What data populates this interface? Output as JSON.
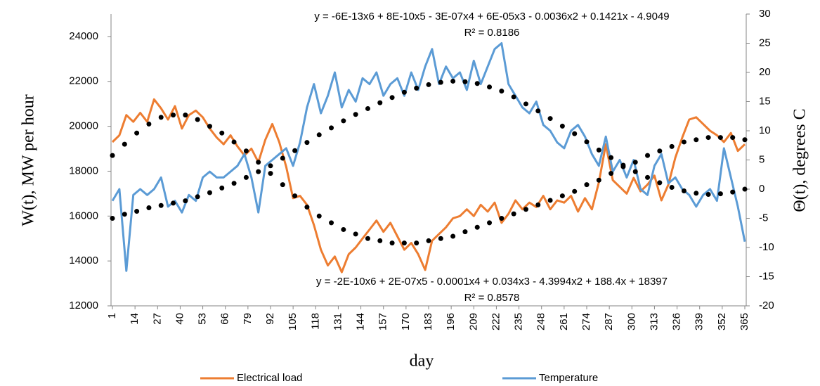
{
  "chart_data": {
    "type": "line",
    "x_label": "day",
    "y_label": "W(t), MW per hour",
    "y2_label": "Θ(t), degrees C",
    "xlim": [
      1,
      365
    ],
    "xticks": [
      1,
      14,
      27,
      40,
      53,
      66,
      79,
      92,
      105,
      118,
      131,
      144,
      157,
      170,
      183,
      196,
      209,
      222,
      235,
      248,
      261,
      274,
      287,
      300,
      313,
      326,
      339,
      352,
      365
    ],
    "ylim": [
      12000,
      25000
    ],
    "yticks": [
      12000,
      14000,
      16000,
      18000,
      20000,
      22000,
      24000
    ],
    "y2lim": [
      -20,
      30
    ],
    "y2ticks": [
      -20,
      -15,
      -10,
      -5,
      0,
      5,
      10,
      15,
      20,
      25,
      30
    ],
    "annotations": [
      "y = -6E-13x6 + 8E-10x5 - 3E-07x4 + 6E-05x3 - 0.0036x2 + 0.1421x - 4.9049",
      "R² = 0.8186",
      "y = -2E-10x6 + 2E-07x5 - 0.0001x4 + 0.034x3 - 4.3994x2 + 188.4x + 18397",
      "R² = 0.8578"
    ],
    "series": [
      {
        "name": "Electrical load",
        "color": "#ed7d31",
        "style": "line",
        "x": [
          1,
          5,
          9,
          13,
          17,
          21,
          25,
          29,
          33,
          37,
          41,
          45,
          49,
          53,
          57,
          61,
          65,
          69,
          73,
          77,
          81,
          85,
          89,
          93,
          97,
          101,
          105,
          109,
          113,
          117,
          121,
          125,
          129,
          133,
          137,
          141,
          145,
          149,
          153,
          157,
          161,
          165,
          169,
          173,
          177,
          181,
          185,
          189,
          193,
          197,
          201,
          205,
          209,
          213,
          217,
          221,
          225,
          229,
          233,
          237,
          241,
          245,
          249,
          253,
          257,
          261,
          265,
          269,
          273,
          277,
          281,
          285,
          289,
          293,
          297,
          301,
          305,
          309,
          313,
          317,
          321,
          325,
          329,
          333,
          337,
          341,
          345,
          349,
          353,
          357,
          361,
          365
        ],
        "values": [
          19300,
          19600,
          20500,
          20200,
          20600,
          20200,
          21200,
          20800,
          20300,
          20900,
          19900,
          20500,
          20700,
          20400,
          19900,
          19500,
          19200,
          19600,
          19100,
          18700,
          19000,
          18400,
          19400,
          20100,
          19300,
          18200,
          16800,
          16900,
          16500,
          15600,
          14500,
          13800,
          14200,
          13500,
          14300,
          14600,
          15000,
          15400,
          15800,
          15300,
          15700,
          15100,
          14500,
          14800,
          14300,
          13600,
          14900,
          15200,
          15500,
          15900,
          16000,
          16300,
          16000,
          16500,
          16200,
          16600,
          15700,
          16100,
          16700,
          16300,
          16600,
          16400,
          16900,
          16300,
          16700,
          16600,
          16900,
          16200,
          16800,
          16300,
          17500,
          19200,
          17600,
          17300,
          17000,
          17700,
          17100,
          17400,
          17800,
          16700,
          17400,
          18600,
          19500,
          20300,
          20400,
          20100,
          19800,
          19600,
          19300,
          19700,
          18900,
          19200
        ]
      },
      {
        "name": "Temperature",
        "color": "#5b9bd5",
        "style": "line",
        "axis": "y2",
        "x": [
          1,
          5,
          9,
          13,
          17,
          21,
          25,
          29,
          33,
          37,
          41,
          45,
          49,
          53,
          57,
          61,
          65,
          69,
          73,
          77,
          81,
          85,
          89,
          93,
          97,
          101,
          105,
          109,
          113,
          117,
          121,
          125,
          129,
          133,
          137,
          141,
          145,
          149,
          153,
          157,
          161,
          165,
          169,
          173,
          177,
          181,
          185,
          189,
          193,
          197,
          201,
          205,
          209,
          213,
          217,
          221,
          225,
          229,
          233,
          237,
          241,
          245,
          249,
          253,
          257,
          261,
          265,
          269,
          273,
          277,
          281,
          285,
          289,
          293,
          297,
          301,
          305,
          309,
          313,
          317,
          321,
          325,
          329,
          333,
          337,
          341,
          345,
          349,
          353,
          357,
          361,
          365
        ],
        "values": [
          -2,
          0,
          -14,
          -1,
          0,
          -1,
          0,
          2,
          -3,
          -2,
          -4,
          -1,
          -2,
          2,
          3,
          2,
          2,
          3,
          4,
          6,
          2,
          -4,
          4,
          5,
          6,
          7,
          4,
          8,
          14,
          18,
          13,
          16,
          20,
          14,
          17,
          15,
          19,
          18,
          20,
          16,
          18,
          19,
          16,
          20,
          17,
          21,
          24,
          18,
          21,
          19,
          20,
          17,
          22,
          18,
          21,
          24,
          25,
          18,
          16,
          14,
          13,
          15,
          11,
          10,
          8,
          7,
          10,
          11,
          9,
          6,
          4,
          9,
          3,
          5,
          2,
          5,
          0,
          -1,
          4,
          6,
          1,
          2,
          0,
          -1,
          -3,
          -1,
          0,
          -2,
          7,
          2,
          -3,
          -9
        ]
      },
      {
        "color": "#000000",
        "style": "dotted",
        "x": [
          1,
          8,
          15,
          22,
          29,
          36,
          43,
          50,
          57,
          64,
          71,
          78,
          85,
          92,
          99,
          106,
          113,
          120,
          127,
          134,
          141,
          148,
          155,
          162,
          169,
          176,
          183,
          190,
          197,
          204,
          211,
          218,
          225,
          232,
          239,
          246,
          253,
          260,
          267,
          274,
          281,
          288,
          295,
          302,
          309,
          316,
          323,
          330,
          337,
          344,
          351,
          358,
          365
        ],
        "values": [
          18700,
          19200,
          19700,
          20100,
          20400,
          20500,
          20500,
          20300,
          20000,
          19700,
          19300,
          18900,
          18400,
          17900,
          17400,
          16900,
          16400,
          16000,
          15700,
          15400,
          15200,
          15000,
          14900,
          14800,
          14800,
          14800,
          14900,
          15000,
          15100,
          15300,
          15500,
          15700,
          15900,
          16100,
          16300,
          16500,
          16700,
          16900,
          17100,
          17400,
          17600,
          17900,
          18200,
          18400,
          18700,
          18900,
          19100,
          19300,
          19400,
          19500,
          19500,
          19500,
          19400
        ]
      },
      {
        "color": "#000000",
        "style": "dotted",
        "axis": "y2",
        "x": [
          1,
          8,
          15,
          22,
          29,
          36,
          43,
          50,
          57,
          64,
          71,
          78,
          85,
          92,
          99,
          106,
          113,
          120,
          127,
          134,
          141,
          148,
          155,
          162,
          169,
          176,
          183,
          190,
          197,
          204,
          211,
          218,
          225,
          232,
          239,
          246,
          253,
          260,
          267,
          274,
          281,
          288,
          295,
          302,
          309,
          316,
          323,
          330,
          337,
          344,
          351,
          358,
          365
        ],
        "values": [
          -5,
          -4.3,
          -3.8,
          -3.2,
          -2.8,
          -2.4,
          -2,
          -1.3,
          -0.6,
          0.2,
          1,
          2,
          3,
          4,
          5.3,
          6.6,
          8,
          9.3,
          10.5,
          11.7,
          12.8,
          13.8,
          14.8,
          15.7,
          16.6,
          17.3,
          17.9,
          18.3,
          18.5,
          18.4,
          18.1,
          17.5,
          16.8,
          15.8,
          14.6,
          13.4,
          12.1,
          10.8,
          9.5,
          8.1,
          6.7,
          5.4,
          4.1,
          3,
          2,
          1.1,
          0.3,
          -0.3,
          -0.7,
          -0.9,
          -0.8,
          -0.5,
          0
        ]
      }
    ]
  }
}
